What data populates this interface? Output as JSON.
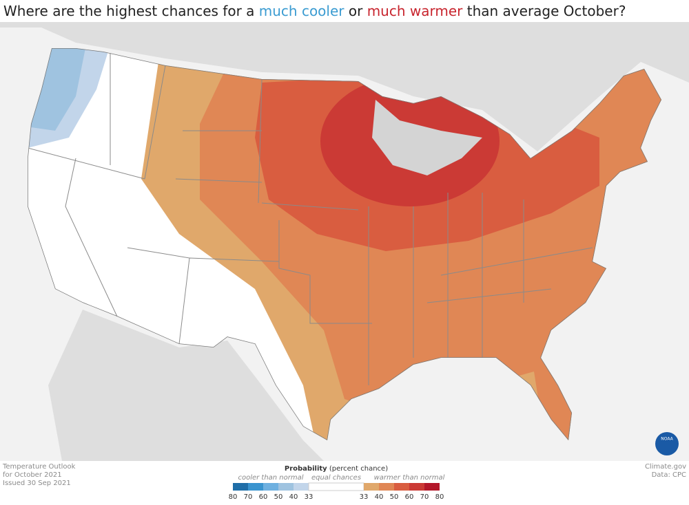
{
  "title": {
    "before": "Where are the highest chances for a ",
    "cool": "much cooler",
    "middle": " or ",
    "warm": "much warmer",
    "after": " than average October?"
  },
  "footer": {
    "left": [
      "Temperature Outlook",
      "for October 2021",
      "Issued 30 Sep 2021"
    ],
    "right": [
      "Climate.gov",
      "Data: CPC"
    ]
  },
  "logo": "NOAA",
  "legend": {
    "title": "Probability",
    "title_note": "(percent chance)",
    "cooler_label": "cooler than normal",
    "equal_label": "equal chances",
    "warmer_label": "warmer than normal",
    "cooler_ticks": [
      80,
      70,
      60,
      50,
      40,
      33
    ],
    "warmer_ticks": [
      33,
      40,
      50,
      60,
      70,
      80
    ],
    "cooler_colors": [
      "#1f6ea8",
      "#3a94cf",
      "#6eb0e0",
      "#9fc3e0",
      "#c2d5ea"
    ],
    "equal_color": "#ffffff",
    "warmer_colors": [
      "#e0a86b",
      "#e08755",
      "#d95d40",
      "#cb3a35",
      "#b3172a"
    ]
  }
}
